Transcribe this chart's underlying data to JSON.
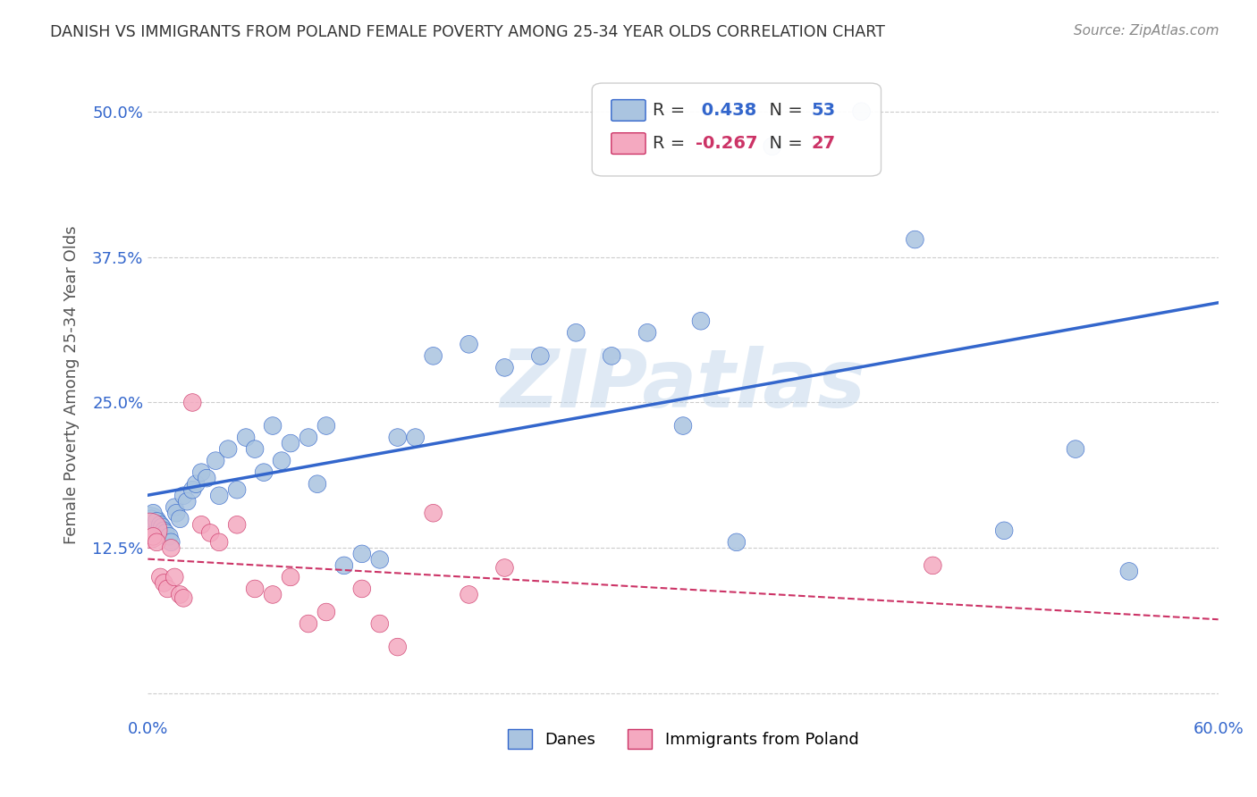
{
  "title": "DANISH VS IMMIGRANTS FROM POLAND FEMALE POVERTY AMONG 25-34 YEAR OLDS CORRELATION CHART",
  "source": "Source: ZipAtlas.com",
  "ylabel": "Female Poverty Among 25-34 Year Olds",
  "background_color": "#ffffff",
  "grid_color": "#cccccc",
  "watermark": "ZIPatlas",
  "xlim": [
    0.0,
    0.6
  ],
  "ylim": [
    -0.02,
    0.55
  ],
  "yticks": [
    0.0,
    0.125,
    0.25,
    0.375,
    0.5
  ],
  "ytick_labels": [
    "",
    "12.5%",
    "25.0%",
    "37.5%",
    "50.0%"
  ],
  "xticks": [
    0.0,
    0.1,
    0.2,
    0.3,
    0.4,
    0.5,
    0.6
  ],
  "xtick_labels": [
    "0.0%",
    "",
    "",
    "",
    "",
    "",
    "60.0%"
  ],
  "danes_color": "#aac4e0",
  "danes_line_color": "#3366cc",
  "poland_color": "#f4a9c0",
  "poland_line_color": "#cc3366",
  "R_danes": 0.438,
  "N_danes": 53,
  "R_poland": -0.267,
  "N_poland": 27,
  "legend_label_danes": "Danes",
  "legend_label_poland": "Immigrants from Poland",
  "danes_x": [
    0.001,
    0.002,
    0.003,
    0.005,
    0.007,
    0.008,
    0.009,
    0.01,
    0.012,
    0.013,
    0.015,
    0.016,
    0.018,
    0.02,
    0.022,
    0.025,
    0.027,
    0.03,
    0.033,
    0.038,
    0.04,
    0.045,
    0.05,
    0.055,
    0.06,
    0.065,
    0.07,
    0.075,
    0.08,
    0.09,
    0.095,
    0.1,
    0.11,
    0.12,
    0.13,
    0.14,
    0.15,
    0.16,
    0.18,
    0.2,
    0.22,
    0.24,
    0.26,
    0.28,
    0.3,
    0.31,
    0.33,
    0.35,
    0.4,
    0.43,
    0.48,
    0.52,
    0.55
  ],
  "danes_y": [
    0.145,
    0.15,
    0.155,
    0.148,
    0.145,
    0.143,
    0.14,
    0.138,
    0.135,
    0.13,
    0.16,
    0.155,
    0.15,
    0.17,
    0.165,
    0.175,
    0.18,
    0.19,
    0.185,
    0.2,
    0.17,
    0.21,
    0.175,
    0.22,
    0.21,
    0.19,
    0.23,
    0.2,
    0.215,
    0.22,
    0.18,
    0.23,
    0.11,
    0.12,
    0.115,
    0.22,
    0.22,
    0.29,
    0.3,
    0.28,
    0.29,
    0.31,
    0.29,
    0.31,
    0.23,
    0.32,
    0.13,
    0.47,
    0.5,
    0.39,
    0.14,
    0.21,
    0.105
  ],
  "danes_sizes": [
    800,
    200,
    200,
    200,
    200,
    200,
    200,
    200,
    200,
    200,
    200,
    200,
    200,
    200,
    200,
    200,
    200,
    200,
    200,
    200,
    200,
    200,
    200,
    200,
    200,
    200,
    200,
    200,
    200,
    200,
    200,
    200,
    200,
    200,
    200,
    200,
    200,
    200,
    200,
    200,
    200,
    200,
    200,
    200,
    200,
    200,
    200,
    200,
    200,
    200,
    200,
    200,
    200
  ],
  "poland_x": [
    0.001,
    0.003,
    0.005,
    0.007,
    0.009,
    0.011,
    0.013,
    0.015,
    0.018,
    0.02,
    0.025,
    0.03,
    0.035,
    0.04,
    0.05,
    0.06,
    0.07,
    0.08,
    0.09,
    0.1,
    0.12,
    0.13,
    0.14,
    0.16,
    0.18,
    0.2,
    0.44
  ],
  "poland_y": [
    0.14,
    0.135,
    0.13,
    0.1,
    0.095,
    0.09,
    0.125,
    0.1,
    0.085,
    0.082,
    0.25,
    0.145,
    0.138,
    0.13,
    0.145,
    0.09,
    0.085,
    0.1,
    0.06,
    0.07,
    0.09,
    0.06,
    0.04,
    0.155,
    0.085,
    0.108,
    0.11
  ],
  "poland_sizes": [
    800,
    200,
    200,
    200,
    200,
    200,
    200,
    200,
    200,
    200,
    200,
    200,
    200,
    200,
    200,
    200,
    200,
    200,
    200,
    200,
    200,
    200,
    200,
    200,
    200,
    200,
    200
  ]
}
